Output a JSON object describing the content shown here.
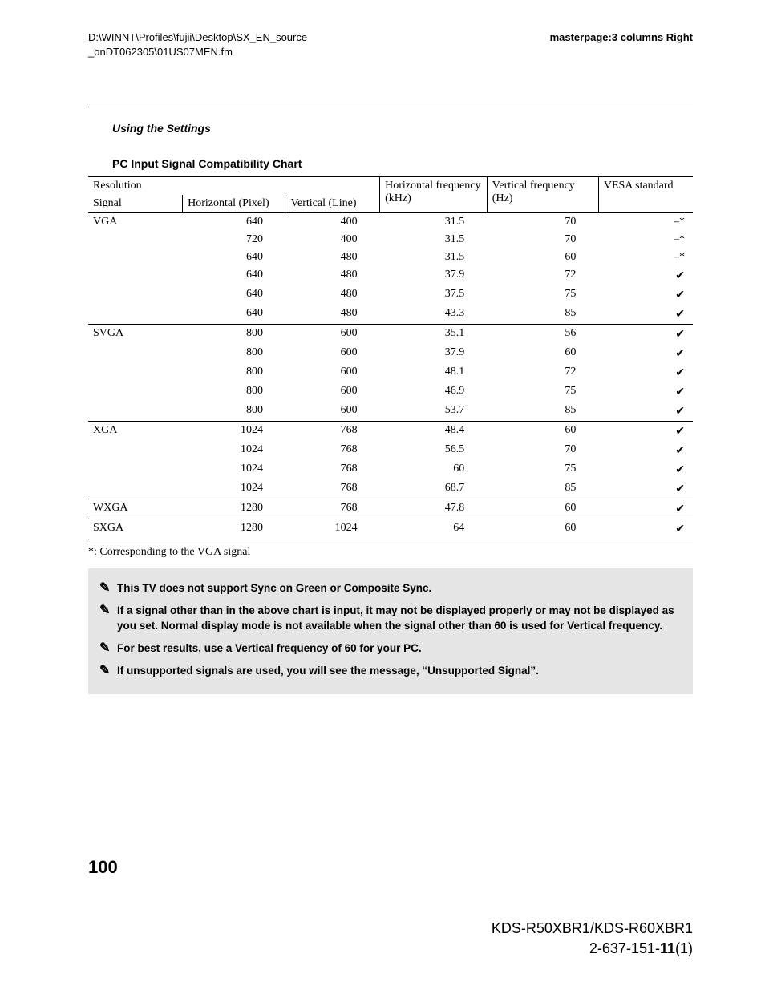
{
  "header": {
    "path_line1": "D:\\WINNT\\Profiles\\fujii\\Desktop\\SX_EN_source",
    "path_line2": "_onDT062305\\01US07MEN.fm",
    "masterpage": "masterpage:3 columns Right"
  },
  "section_title": "Using the Settings",
  "subsection_title": "PC Input Signal Compatibility Chart",
  "table": {
    "headers": {
      "resolution": "Resolution",
      "signal": "Signal",
      "hpx": "Horizontal (Pixel)",
      "vline": "Vertical (Line)",
      "hfreq": "Horizontal frequency (kHz)",
      "vfreq": "Vertical frequency (Hz)",
      "vesa": "VESA standard"
    },
    "groups": [
      {
        "signal": "VGA",
        "rows": [
          {
            "hpx": "640",
            "vline": "400",
            "hfreq": "31.5",
            "vfreq": "70",
            "vesa": "–*"
          },
          {
            "hpx": "720",
            "vline": "400",
            "hfreq": "31.5",
            "vfreq": "70",
            "vesa": "–*"
          },
          {
            "hpx": "640",
            "vline": "480",
            "hfreq": "31.5",
            "vfreq": "60",
            "vesa": "–*"
          },
          {
            "hpx": "640",
            "vline": "480",
            "hfreq": "37.9",
            "vfreq": "72",
            "vesa": "✔"
          },
          {
            "hpx": "640",
            "vline": "480",
            "hfreq": "37.5",
            "vfreq": "75",
            "vesa": "✔"
          },
          {
            "hpx": "640",
            "vline": "480",
            "hfreq": "43.3",
            "vfreq": "85",
            "vesa": "✔"
          }
        ]
      },
      {
        "signal": "SVGA",
        "rows": [
          {
            "hpx": "800",
            "vline": "600",
            "hfreq": "35.1",
            "vfreq": "56",
            "vesa": "✔"
          },
          {
            "hpx": "800",
            "vline": "600",
            "hfreq": "37.9",
            "vfreq": "60",
            "vesa": "✔"
          },
          {
            "hpx": "800",
            "vline": "600",
            "hfreq": "48.1",
            "vfreq": "72",
            "vesa": "✔"
          },
          {
            "hpx": "800",
            "vline": "600",
            "hfreq": "46.9",
            "vfreq": "75",
            "vesa": "✔"
          },
          {
            "hpx": "800",
            "vline": "600",
            "hfreq": "53.7",
            "vfreq": "85",
            "vesa": "✔"
          }
        ]
      },
      {
        "signal": "XGA",
        "rows": [
          {
            "hpx": "1024",
            "vline": "768",
            "hfreq": "48.4",
            "vfreq": "60",
            "vesa": "✔"
          },
          {
            "hpx": "1024",
            "vline": "768",
            "hfreq": "56.5",
            "vfreq": "70",
            "vesa": "✔"
          },
          {
            "hpx": "1024",
            "vline": "768",
            "hfreq": "60",
            "vfreq": "75",
            "vesa": "✔"
          },
          {
            "hpx": "1024",
            "vline": "768",
            "hfreq": "68.7",
            "vfreq": "85",
            "vesa": "✔"
          }
        ]
      },
      {
        "signal": "WXGA",
        "rows": [
          {
            "hpx": "1280",
            "vline": "768",
            "hfreq": "47.8",
            "vfreq": "60",
            "vesa": "✔"
          }
        ]
      },
      {
        "signal": "SXGA",
        "rows": [
          {
            "hpx": "1280",
            "vline": "1024",
            "hfreq": "64",
            "vfreq": "60",
            "vesa": "✔"
          }
        ]
      }
    ]
  },
  "footnote_star": "*: Corresponding to the VGA signal",
  "notes": [
    "This TV does not support Sync on Green or Composite Sync.",
    "If a signal other than in the above chart is input, it may not be displayed properly or may not be displayed as you set. Normal display mode is not available when the signal other than 60 is used for Vertical frequency.",
    "For best results, use a Vertical frequency of 60 for your PC.",
    "If unsupported signals are used, you will see the message, “Unsupported Signal”."
  ],
  "page_number": "100",
  "footer": {
    "model": "KDS-R50XBR1/KDS-R60XBR1",
    "partno_pre": "2-637-151-",
    "partno_bold": "11",
    "partno_post": "(1)"
  }
}
